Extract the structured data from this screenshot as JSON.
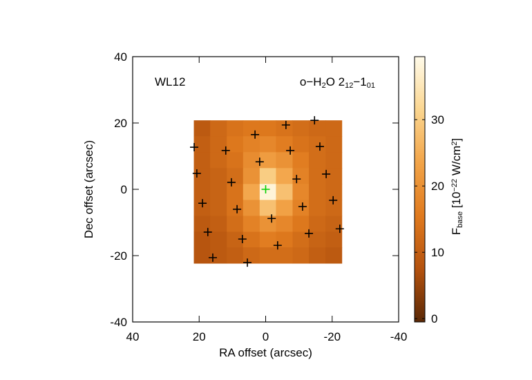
{
  "chart_data": {
    "type": "heatmap",
    "xlabel": "RA offset (arcsec)",
    "ylabel": "Dec offset (arcsec)",
    "xlim": [
      40,
      -40
    ],
    "ylim": [
      -40,
      40
    ],
    "xticks": [
      40,
      20,
      0,
      -20,
      -40
    ],
    "yticks": [
      -40,
      -20,
      0,
      20,
      40
    ],
    "annotations": [
      {
        "parts": [
          {
            "text": "WL12"
          }
        ]
      },
      {
        "parts": [
          {
            "text": "o−H"
          },
          {
            "text": "2",
            "shift": "sub"
          },
          {
            "text": "O 2"
          },
          {
            "text": "12",
            "shift": "sub"
          },
          {
            "text": "−1"
          },
          {
            "text": "01",
            "shift": "sub"
          }
        ]
      }
    ],
    "heatmap": {
      "x_edges": [
        21.6,
        16.7,
        11.7,
        6.8,
        1.8,
        -3.1,
        -8.1,
        -13.0,
        -18.0,
        -22.9
      ],
      "y_edges": [
        20.8,
        16.0,
        11.2,
        6.4,
        1.6,
        -3.2,
        -8.0,
        -12.8,
        -17.5,
        -22.3
      ],
      "values": [
        [
          9,
          12,
          14,
          15,
          15,
          14,
          13,
          12,
          12
        ],
        [
          10,
          12,
          15,
          17,
          18,
          16,
          14,
          13,
          12
        ],
        [
          10,
          12,
          14,
          19,
          22,
          20,
          16,
          13,
          12
        ],
        [
          10,
          11,
          13,
          20,
          30,
          24,
          17,
          13,
          12
        ],
        [
          10,
          11,
          14,
          24,
          38,
          28,
          18,
          13,
          12
        ],
        [
          10,
          11,
          14,
          20,
          28,
          23,
          17,
          13,
          12
        ],
        [
          9,
          10,
          13,
          17,
          20,
          18,
          15,
          12,
          11
        ],
        [
          8,
          9,
          11,
          14,
          16,
          15,
          13,
          11,
          10
        ],
        [
          8,
          9,
          10,
          12,
          13,
          13,
          12,
          10,
          9
        ]
      ]
    },
    "colormap": [
      "#5a2806",
      "#b4520e",
      "#e07a1e",
      "#f2a448",
      "#fbd690",
      "#fffbea"
    ],
    "clim": [
      -0.5,
      39.5
    ],
    "colorbar_ticks": [
      0,
      10,
      20,
      30
    ],
    "colorbar_label": {
      "parts": [
        {
          "text": "F"
        },
        {
          "text": "base",
          "shift": "sub"
        },
        {
          "text": " [10"
        },
        {
          "text": "−22",
          "shift": "sup"
        },
        {
          "text": " W/cm"
        },
        {
          "text": "2",
          "shift": "sup"
        },
        {
          "text": "]"
        }
      ]
    },
    "points": {
      "color": "#000000",
      "x": [
        21.5,
        20.7,
        19.0,
        17.4,
        15.9,
        12.0,
        10.3,
        8.6,
        7.0,
        5.5,
        3.2,
        1.8,
        -1.8,
        -3.6,
        -6.1,
        -7.4,
        -9.3,
        -11.1,
        -13.0,
        -14.7,
        -16.3,
        -18.2,
        -20.3,
        -22.3
      ],
      "y": [
        12.7,
        4.8,
        -4.2,
        -12.9,
        -20.6,
        11.7,
        2.1,
        -6.0,
        -15.0,
        -22.1,
        16.5,
        8.3,
        -8.8,
        -16.9,
        19.4,
        11.7,
        3.1,
        -5.2,
        -13.3,
        20.8,
        12.9,
        4.6,
        -3.3,
        -11.9
      ]
    },
    "center": {
      "color": "#00d000",
      "x": 0,
      "y": 0
    }
  }
}
